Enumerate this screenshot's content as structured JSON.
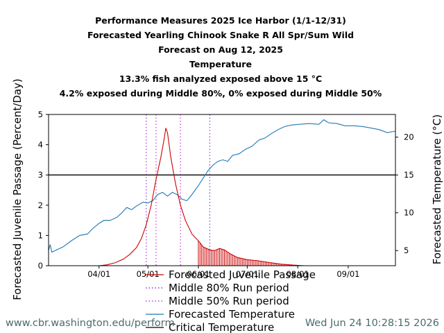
{
  "chart_data": {
    "type": "line",
    "title_lines": [
      "Performance Measures 2025 Ice Harbor (1/1-12/31)",
      "Forecasted Yearling Chinook Snake R All Spr/Sum Wild",
      "Forecast on Aug 12, 2025",
      "Temperature",
      "13.3% fish analyzed exposed above 15 °C",
      "4.2% exposed during Middle 80%, 0% exposed during Middle 50%"
    ],
    "ylabel_left": "Forecasted Juvenile Passage (Percent/Day)",
    "ylabel_right": "Forecasted Temperature (°C)",
    "xlim": [
      "2025-03-01",
      "2025-09-30"
    ],
    "ylim_left": [
      0,
      5
    ],
    "ylim_right": [
      3,
      23
    ],
    "x_ticks": [
      {
        "date": "2025-04-01",
        "label": "04/01"
      },
      {
        "date": "2025-05-01",
        "label": "05/01"
      },
      {
        "date": "2025-06-01",
        "label": "06/01"
      },
      {
        "date": "2025-07-01",
        "label": "07/01"
      },
      {
        "date": "2025-08-01",
        "label": "08/01"
      },
      {
        "date": "2025-09-01",
        "label": "09/01"
      }
    ],
    "y_ticks_left": [
      0,
      1,
      2,
      3,
      4,
      5
    ],
    "y_ticks_right": [
      5,
      10,
      15,
      20
    ],
    "critical_temperature": 15,
    "middle_80_dates": [
      "2025-04-30",
      "2025-06-08"
    ],
    "middle_50_dates": [
      "2025-05-06",
      "2025-05-21"
    ],
    "grid": false,
    "legend_placement": "below",
    "legend": [
      {
        "label": "Forecasted Juvenile Passage",
        "color": "#cc0000",
        "style": "solid"
      },
      {
        "label": "Middle 80% Run period",
        "color": "#9933cc",
        "style": "dotted"
      },
      {
        "label": "Middle 50% Run period",
        "color": "#cc33cc",
        "style": "dotted"
      },
      {
        "label": "Forecasted Temperature",
        "color": "#1f77b4",
        "style": "solid"
      },
      {
        "label": "Critical Temperature",
        "color": "#000000",
        "style": "solid"
      }
    ],
    "series": [
      {
        "name": "Forecasted Juvenile Passage",
        "axis": "left",
        "color": "#cc0000",
        "points": [
          [
            "2025-03-01",
            0
          ],
          [
            "2025-04-01",
            0
          ],
          [
            "2025-04-06",
            0.03
          ],
          [
            "2025-04-11",
            0.1
          ],
          [
            "2025-04-16",
            0.22
          ],
          [
            "2025-04-20",
            0.38
          ],
          [
            "2025-04-24",
            0.6
          ],
          [
            "2025-04-27",
            0.9
          ],
          [
            "2025-04-30",
            1.35
          ],
          [
            "2025-05-03",
            2.0
          ],
          [
            "2025-05-06",
            2.85
          ],
          [
            "2025-05-09",
            3.6
          ],
          [
            "2025-05-11",
            4.2
          ],
          [
            "2025-05-12",
            4.55
          ],
          [
            "2025-05-13",
            4.4
          ],
          [
            "2025-05-15",
            3.6
          ],
          [
            "2025-05-18",
            2.7
          ],
          [
            "2025-05-21",
            2.0
          ],
          [
            "2025-05-24",
            1.5
          ],
          [
            "2025-05-28",
            1.05
          ],
          [
            "2025-06-01",
            0.82
          ],
          [
            "2025-06-04",
            0.62
          ],
          [
            "2025-06-08",
            0.52
          ],
          [
            "2025-06-11",
            0.5
          ],
          [
            "2025-06-14",
            0.57
          ],
          [
            "2025-06-17",
            0.52
          ],
          [
            "2025-06-21",
            0.38
          ],
          [
            "2025-06-25",
            0.27
          ],
          [
            "2025-07-01",
            0.2
          ],
          [
            "2025-07-08",
            0.16
          ],
          [
            "2025-07-15",
            0.1
          ],
          [
            "2025-07-22",
            0.05
          ],
          [
            "2025-07-29",
            0.02
          ],
          [
            "2025-08-05",
            0.0
          ],
          [
            "2025-09-30",
            0
          ]
        ]
      },
      {
        "name": "Forecasted Temperature",
        "axis": "right",
        "color": "#1f77b4",
        "points": [
          [
            "2025-03-01",
            5.0
          ],
          [
            "2025-03-02",
            5.8
          ],
          [
            "2025-03-03",
            4.8
          ],
          [
            "2025-03-05",
            5.0
          ],
          [
            "2025-03-10",
            5.5
          ],
          [
            "2025-03-15",
            6.3
          ],
          [
            "2025-03-20",
            7.0
          ],
          [
            "2025-03-25",
            7.2
          ],
          [
            "2025-03-28",
            7.9
          ],
          [
            "2025-04-01",
            8.6
          ],
          [
            "2025-04-04",
            9.0
          ],
          [
            "2025-04-08",
            9.0
          ],
          [
            "2025-04-12",
            9.4
          ],
          [
            "2025-04-15",
            10.0
          ],
          [
            "2025-04-18",
            10.7
          ],
          [
            "2025-04-21",
            10.4
          ],
          [
            "2025-04-24",
            10.9
          ],
          [
            "2025-04-28",
            11.4
          ],
          [
            "2025-05-01",
            11.3
          ],
          [
            "2025-05-04",
            11.6
          ],
          [
            "2025-05-07",
            12.4
          ],
          [
            "2025-05-10",
            12.7
          ],
          [
            "2025-05-13",
            12.2
          ],
          [
            "2025-05-16",
            12.7
          ],
          [
            "2025-05-19",
            12.4
          ],
          [
            "2025-05-22",
            11.8
          ],
          [
            "2025-05-25",
            11.6
          ],
          [
            "2025-05-28",
            12.4
          ],
          [
            "2025-06-01",
            13.6
          ],
          [
            "2025-06-04",
            14.6
          ],
          [
            "2025-06-07",
            15.6
          ],
          [
            "2025-06-10",
            16.3
          ],
          [
            "2025-06-13",
            16.8
          ],
          [
            "2025-06-16",
            17.0
          ],
          [
            "2025-06-19",
            16.8
          ],
          [
            "2025-06-22",
            17.6
          ],
          [
            "2025-06-26",
            17.8
          ],
          [
            "2025-06-30",
            18.4
          ],
          [
            "2025-07-04",
            18.8
          ],
          [
            "2025-07-08",
            19.6
          ],
          [
            "2025-07-12",
            19.9
          ],
          [
            "2025-07-16",
            20.5
          ],
          [
            "2025-07-20",
            21.0
          ],
          [
            "2025-07-24",
            21.4
          ],
          [
            "2025-07-28",
            21.6
          ],
          [
            "2025-08-02",
            21.7
          ],
          [
            "2025-08-08",
            21.8
          ],
          [
            "2025-08-14",
            21.7
          ],
          [
            "2025-08-17",
            22.3
          ],
          [
            "2025-08-20",
            21.9
          ],
          [
            "2025-08-25",
            21.8
          ],
          [
            "2025-08-30",
            21.5
          ],
          [
            "2025-09-05",
            21.5
          ],
          [
            "2025-09-10",
            21.4
          ],
          [
            "2025-09-15",
            21.2
          ],
          [
            "2025-09-20",
            21.0
          ],
          [
            "2025-09-25",
            20.6
          ],
          [
            "2025-09-30",
            20.8
          ]
        ]
      }
    ]
  },
  "footer": {
    "url": "www.cbr.washington.edu/perform",
    "timestamp": "Wed Jun 24 10:28:15 2026"
  },
  "colors": {
    "passage": "#cc0000",
    "temperature": "#1f77b4",
    "critical": "#000000",
    "middle80": "#9933cc",
    "middle50": "#cc33cc",
    "footer": "#4a6b6b"
  }
}
